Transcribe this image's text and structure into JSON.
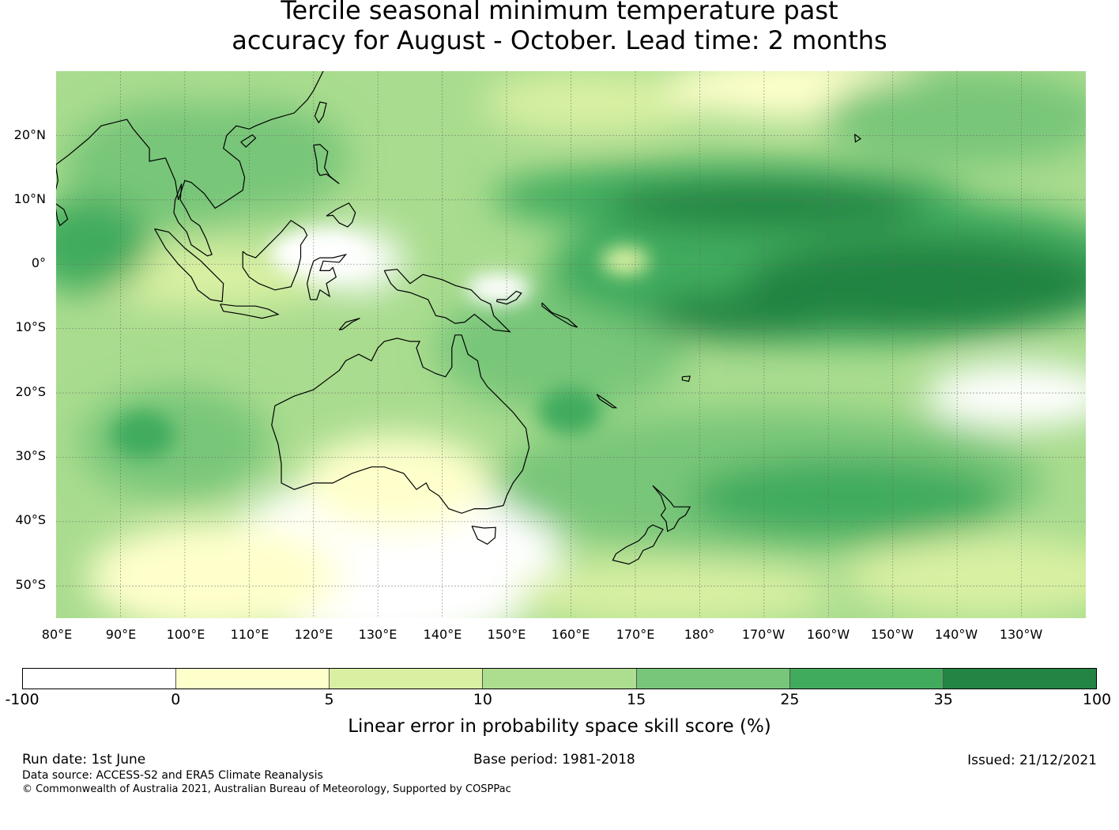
{
  "title": {
    "line1": "Tercile seasonal minimum temperature past",
    "line2": "accuracy for August - October. Lead time: 2 months"
  },
  "map": {
    "lat_labels": [
      "20°N",
      "10°N",
      "0°",
      "10°S",
      "20°S",
      "30°S",
      "40°S",
      "50°S"
    ],
    "lon_labels": [
      "80°E",
      "90°E",
      "100°E",
      "110°E",
      "120°E",
      "130°E",
      "140°E",
      "150°E",
      "160°E",
      "170°E",
      "180°",
      "170°W",
      "160°W",
      "150°W",
      "140°W",
      "130°W"
    ],
    "extent": {
      "lon_min": 80,
      "lon_max": 240,
      "lat_min": -55,
      "lat_max": 30
    },
    "coast_color": "#000000"
  },
  "colorbar": {
    "boundaries": [
      "-100",
      "0",
      "5",
      "10",
      "15",
      "25",
      "35",
      "100"
    ],
    "colors": [
      "#ffffff",
      "#ffffcc",
      "#d9f0a3",
      "#addd8e",
      "#78c679",
      "#41ab5d",
      "#238443"
    ],
    "label": "Linear error in probability space skill score (%)"
  },
  "footer": {
    "run_date": "Run date: 1st June",
    "base_period": "Base period: 1981-2018",
    "issued": "Issued: 21/12/2021",
    "data_source": "Data source: ACCESS-S2 and ERA5 Climate Reanalysis",
    "copyright": "© Commonwealth of Australia 2021, Australian Bureau of Meteorology, Supported by COSPPac"
  }
}
